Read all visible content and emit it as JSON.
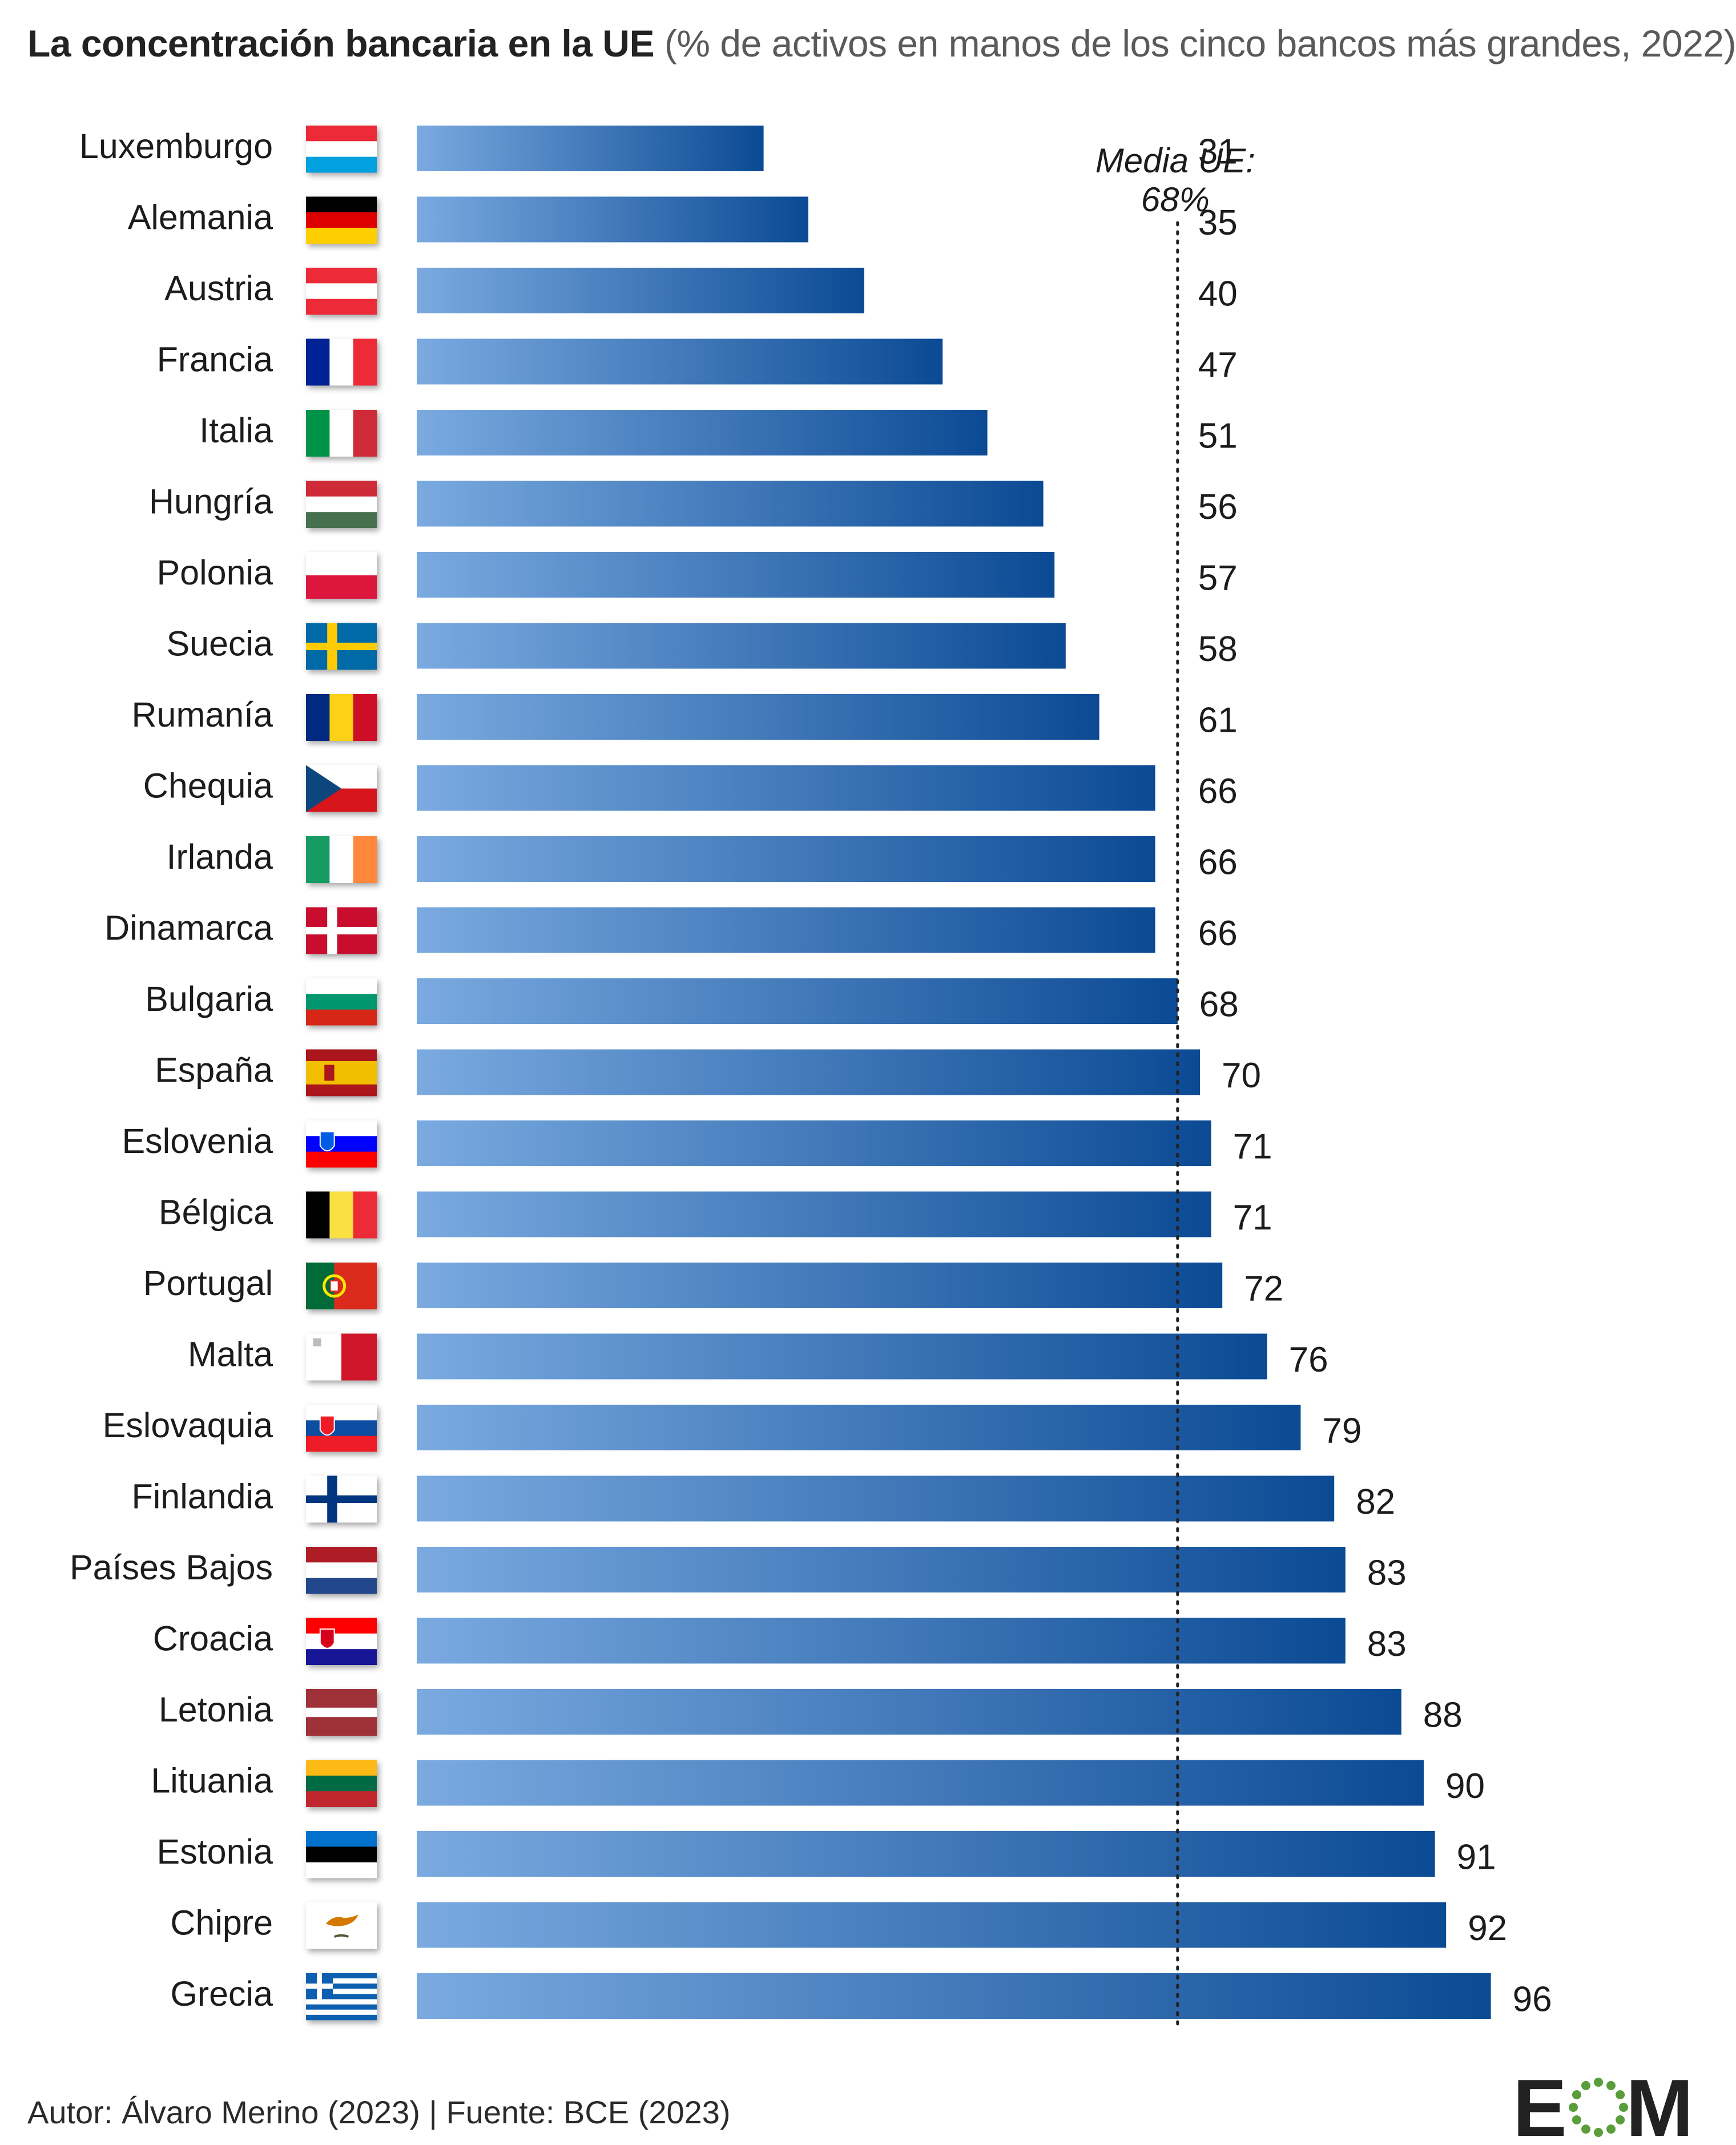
{
  "title": {
    "main": "La concentración bancaria en la UE",
    "sub": "(% de activos en manos de los cinco bancos más grandes, 2022)"
  },
  "chart_data": {
    "type": "bar",
    "orientation": "horizontal",
    "categories": [
      "Luxemburgo",
      "Alemania",
      "Austria",
      "Francia",
      "Italia",
      "Hungría",
      "Polonia",
      "Suecia",
      "Rumanía",
      "Chequia",
      "Irlanda",
      "Dinamarca",
      "Bulgaria",
      "España",
      "Eslovenia",
      "Bélgica",
      "Portugal",
      "Malta",
      "Eslovaquia",
      "Finlandia",
      "Países Bajos",
      "Croacia",
      "Letonia",
      "Lituania",
      "Estonia",
      "Chipre",
      "Grecia"
    ],
    "values": [
      31,
      35,
      40,
      47,
      51,
      56,
      57,
      58,
      61,
      66,
      66,
      66,
      68,
      70,
      71,
      71,
      72,
      76,
      79,
      82,
      83,
      83,
      88,
      90,
      91,
      92,
      96
    ],
    "xlim": [
      0,
      96
    ],
    "reference_line": {
      "value": 68,
      "label_line1": "Media UE:",
      "label_line2": "68%"
    },
    "bar_colors": [
      "#7aaae0",
      "#0b4a94"
    ],
    "grid": false,
    "legend": "none",
    "flags": [
      {
        "type": "h3",
        "colors": [
          "#ed2939",
          "#ffffff",
          "#00a1de"
        ]
      },
      {
        "type": "h3",
        "colors": [
          "#000000",
          "#dd0000",
          "#ffce00"
        ]
      },
      {
        "type": "h3",
        "colors": [
          "#ed2939",
          "#ffffff",
          "#ed2939"
        ]
      },
      {
        "type": "v3",
        "colors": [
          "#002395",
          "#ffffff",
          "#ed2939"
        ]
      },
      {
        "type": "v3",
        "colors": [
          "#009246",
          "#ffffff",
          "#ce2b37"
        ]
      },
      {
        "type": "h3",
        "colors": [
          "#ce2939",
          "#ffffff",
          "#477050"
        ]
      },
      {
        "type": "h2",
        "colors": [
          "#ffffff",
          "#dc143c"
        ]
      },
      {
        "type": "nordic",
        "colors": [
          "#006aa7",
          "#fecc00"
        ]
      },
      {
        "type": "v3",
        "colors": [
          "#002b7f",
          "#fcd116",
          "#ce1126"
        ]
      },
      {
        "type": "czech",
        "colors": [
          "#ffffff",
          "#d7141a",
          "#11457e"
        ]
      },
      {
        "type": "v3",
        "colors": [
          "#169b62",
          "#ffffff",
          "#ff883e"
        ]
      },
      {
        "type": "nordic",
        "colors": [
          "#c8102e",
          "#ffffff"
        ]
      },
      {
        "type": "h3",
        "colors": [
          "#ffffff",
          "#00966e",
          "#d62612"
        ]
      },
      {
        "type": "spain",
        "colors": [
          "#aa151b",
          "#f1bf00"
        ]
      },
      {
        "type": "h3e",
        "colors": [
          "#ffffff",
          "#0000ff",
          "#ff0000"
        ],
        "emblem": "#005ce5"
      },
      {
        "type": "v3",
        "colors": [
          "#000000",
          "#fae042",
          "#ed2939"
        ]
      },
      {
        "type": "portugal",
        "colors": [
          "#046a38",
          "#da291c",
          "#ffe900"
        ]
      },
      {
        "type": "malta",
        "colors": [
          "#ffffff",
          "#cf142b"
        ]
      },
      {
        "type": "h3e",
        "colors": [
          "#ffffff",
          "#0b4ea2",
          "#ee1c25"
        ],
        "emblem": "#ee1c25"
      },
      {
        "type": "nordic",
        "colors": [
          "#ffffff",
          "#003580"
        ]
      },
      {
        "type": "h3",
        "colors": [
          "#ae1c28",
          "#ffffff",
          "#21468b"
        ]
      },
      {
        "type": "h3e",
        "colors": [
          "#ff0000",
          "#ffffff",
          "#171796"
        ],
        "emblem": "#d6001c"
      },
      {
        "type": "latvia",
        "colors": [
          "#9e3039",
          "#ffffff"
        ]
      },
      {
        "type": "h3",
        "colors": [
          "#fdb913",
          "#006a44",
          "#c1272d"
        ]
      },
      {
        "type": "h3",
        "colors": [
          "#0072ce",
          "#000000",
          "#ffffff"
        ]
      },
      {
        "type": "cyprus",
        "colors": [
          "#ffffff",
          "#d57800",
          "#4e5b31"
        ]
      },
      {
        "type": "greece",
        "colors": [
          "#0d5eaf",
          "#ffffff"
        ]
      }
    ]
  },
  "footer": "Autor: Álvaro Merino (2023) | Fuente: BCE (2023)",
  "logo": {
    "text": "EOM",
    "color": "#222222",
    "ring_color": "#5a9e3c"
  }
}
